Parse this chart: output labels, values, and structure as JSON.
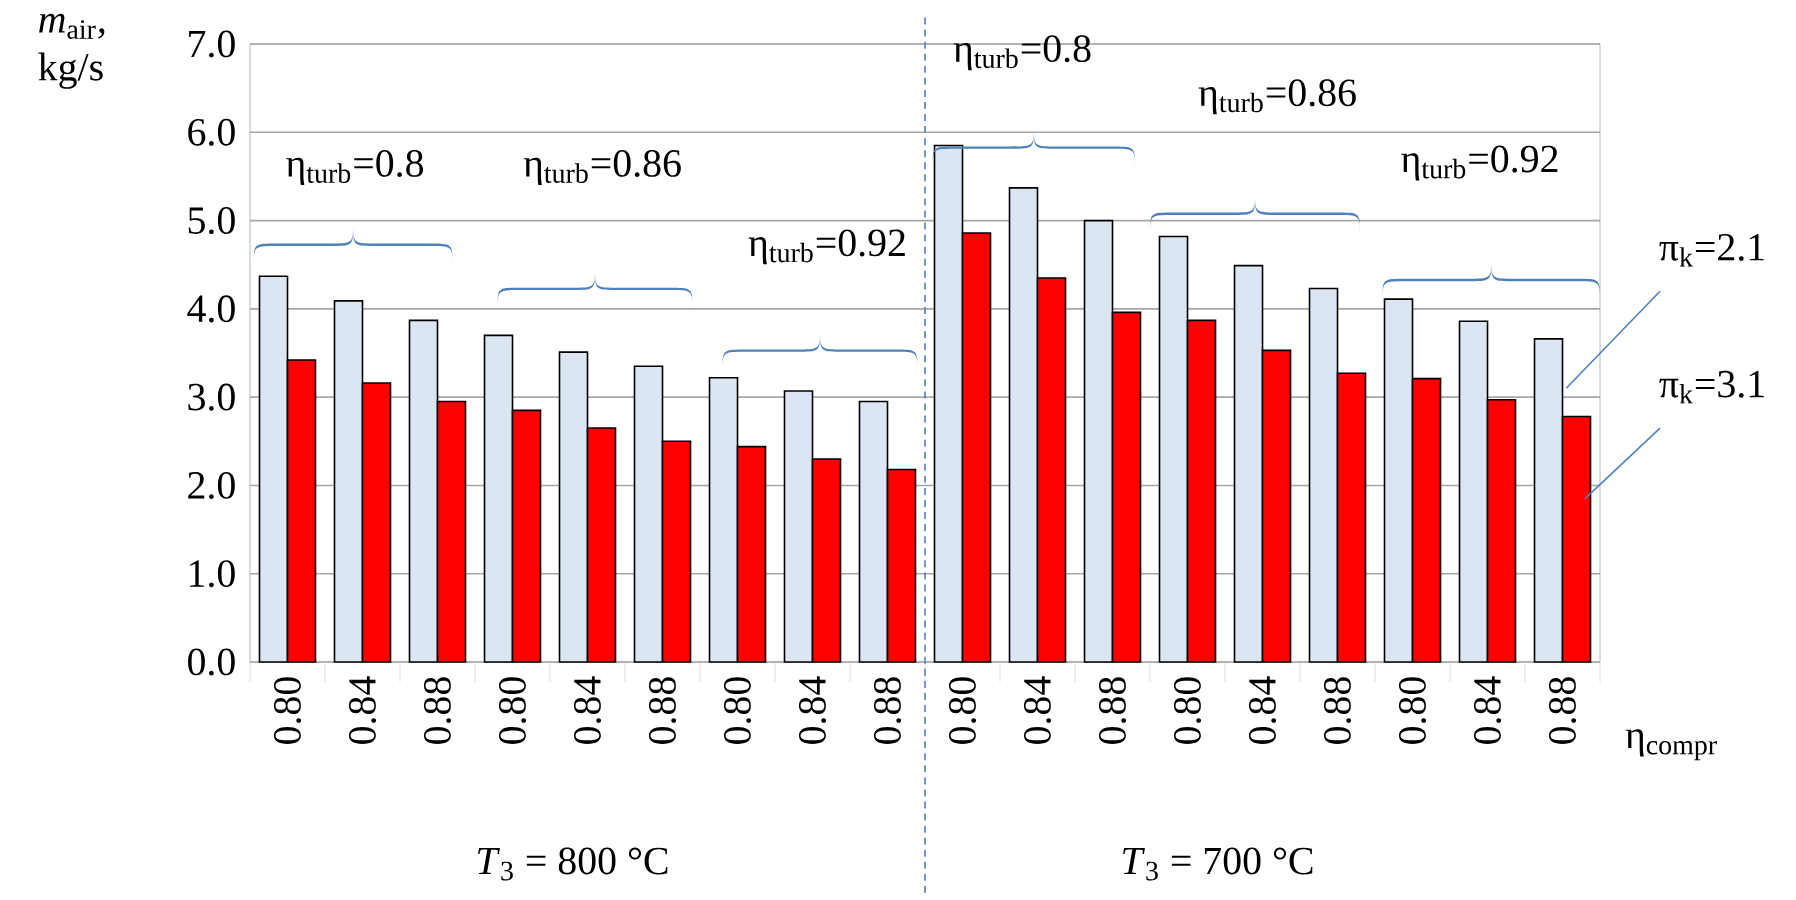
{
  "chart_data": {
    "type": "bar",
    "ylabel": "*m*$_{air}$, kg/s",
    "xlabel": "η$_{compr}$",
    "categories": [
      "0.80",
      "0.84",
      "0.88",
      "0.80",
      "0.84",
      "0.88",
      "0.80",
      "0.84",
      "0.88",
      "0.80",
      "0.84",
      "0.88",
      "0.80",
      "0.84",
      "0.88",
      "0.80",
      "0.84",
      "0.88"
    ],
    "series": [
      {
        "name": "π$_{k}$=2.1",
        "color": "#dce6f2",
        "values": [
          4.37,
          4.09,
          3.87,
          3.7,
          3.51,
          3.35,
          3.22,
          3.07,
          2.95,
          5.85,
          5.37,
          5.0,
          4.82,
          4.49,
          4.23,
          4.11,
          3.86,
          3.66
        ]
      },
      {
        "name": "π$_{k}$=3.1",
        "color": "#ff0000",
        "values": [
          3.42,
          3.16,
          2.95,
          2.85,
          2.65,
          2.5,
          2.44,
          2.3,
          2.18,
          4.86,
          4.35,
          3.96,
          3.87,
          3.53,
          3.27,
          3.21,
          2.97,
          2.78
        ]
      }
    ],
    "ylim": [
      0,
      7
    ],
    "yticks": [
      {
        "value": 0,
        "label": "0.0"
      },
      {
        "value": 1,
        "label": "1.0"
      },
      {
        "value": 2,
        "label": "2.0"
      },
      {
        "value": 3,
        "label": "3.0"
      },
      {
        "value": 4,
        "label": "4.0"
      },
      {
        "value": 5,
        "label": "5.0"
      },
      {
        "value": 6,
        "label": "6.0"
      },
      {
        "value": 7,
        "label": "7.0"
      }
    ],
    "grid": "y",
    "annotations": [
      "η$_{turb}$=0.8",
      "η$_{turb}$=0.86",
      "η$_{turb}$=0.92",
      "η$_{turb}$=0.8",
      "η$_{turb}$=0.86",
      "η$_{turb}$=0.92",
      "*T*$_{3}$ = 800 °C",
      "*T*$_{3}$ = 700 °C"
    ]
  }
}
